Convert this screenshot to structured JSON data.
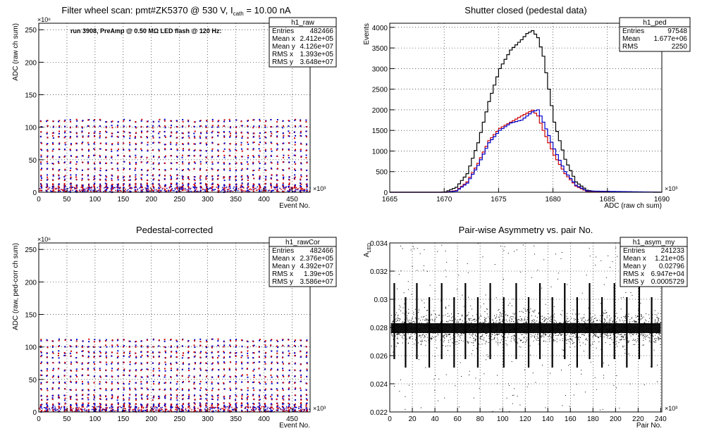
{
  "chart_data": [
    {
      "id": "raw",
      "type": "scatter",
      "title": "Filter wheel scan: pmt#ZK5370 @   530 V, I",
      "title_sub": "cath",
      "title_tail": " = 10.00 nA",
      "annotation": "run 3908, PreAmp @ 0.50 MΩ LED flash @  120 Hz:",
      "xlabel": "Event No.",
      "ylabel": "ADC (raw ch sum)",
      "x_exponent": "×10³",
      "y_exponent": "×10⁶",
      "xlim": [
        0,
        482
      ],
      "ylim": [
        0,
        260
      ],
      "xticks": [
        0,
        50,
        100,
        150,
        200,
        250,
        300,
        350,
        400,
        450
      ],
      "yticks": [
        0,
        50,
        100,
        150,
        200,
        250
      ],
      "grid": true,
      "stats": {
        "name": "h1_raw",
        "rows": [
          {
            "label": "Entries",
            "value": "482466"
          },
          {
            "label": "Mean x",
            "value": "2.412e+05"
          },
          {
            "label": "Mean y",
            "value": "4.126e+07"
          },
          {
            "label": "RMS x",
            "value": "1.393e+05"
          },
          {
            "label": "RMS y",
            "value": "3.648e+07"
          }
        ]
      },
      "band_levels": [
        2,
        8,
        12,
        20,
        25,
        35,
        45,
        55,
        65,
        75,
        85,
        92,
        101,
        110
      ],
      "colors": [
        "#cc0000",
        "#0000cc"
      ]
    },
    {
      "id": "ped",
      "type": "line",
      "title": "Shutter closed (pedestal data)",
      "xlabel": "ADC (raw ch sum)",
      "ylabel": "Events",
      "x_exponent": "×10³",
      "xlim": [
        1665,
        1690
      ],
      "ylim": [
        0,
        4100
      ],
      "xticks": [
        1665,
        1670,
        1675,
        1680,
        1685,
        1690
      ],
      "yticks": [
        0,
        500,
        1000,
        1500,
        2000,
        2500,
        3000,
        3500,
        4000
      ],
      "grid": true,
      "stats": {
        "name": "h1_ped",
        "rows": [
          {
            "label": "Entries",
            "value": "97548"
          },
          {
            "label": "Mean",
            "value": "1.677e+06"
          },
          {
            "label": "RMS",
            "value": "2250"
          }
        ]
      },
      "series": [
        {
          "color": "#000000",
          "x": [
            1665,
            1669.5,
            1670,
            1671,
            1672,
            1673,
            1674,
            1675,
            1676,
            1677,
            1677.5,
            1678,
            1678.5,
            1679,
            1679.5,
            1680,
            1681,
            1682,
            1683,
            1684,
            1690
          ],
          "y": [
            0,
            0,
            10,
            120,
            450,
            1200,
            2200,
            3000,
            3450,
            3700,
            3850,
            3920,
            3750,
            3300,
            2500,
            1700,
            800,
            250,
            50,
            5,
            0
          ]
        },
        {
          "color": "#cc0000",
          "x": [
            1665,
            1670,
            1671,
            1672,
            1673,
            1674,
            1675,
            1676,
            1677,
            1678,
            1678.5,
            1679,
            1680,
            1681,
            1682,
            1683,
            1690
          ],
          "y": [
            0,
            0,
            40,
            250,
            700,
            1250,
            1550,
            1700,
            1850,
            1990,
            1850,
            1500,
            900,
            450,
            150,
            20,
            0
          ]
        },
        {
          "color": "#0000cc",
          "x": [
            1665,
            1670,
            1671,
            1672,
            1673,
            1674,
            1675,
            1676,
            1677,
            1678,
            1678.5,
            1679,
            1680,
            1681,
            1682,
            1683,
            1690
          ],
          "y": [
            0,
            0,
            30,
            220,
            650,
            1200,
            1500,
            1680,
            1750,
            1950,
            2000,
            1700,
            1050,
            500,
            170,
            30,
            0
          ]
        }
      ]
    },
    {
      "id": "rawcor",
      "type": "scatter",
      "title": "Pedestal-corrected",
      "xlabel": "Event No.",
      "ylabel": "ADC (raw, ped-corr ch sum)",
      "x_exponent": "×10³",
      "y_exponent": "×10⁶",
      "xlim": [
        0,
        482
      ],
      "ylim": [
        0,
        260
      ],
      "xticks": [
        0,
        50,
        100,
        150,
        200,
        250,
        300,
        350,
        400,
        450
      ],
      "yticks": [
        0,
        50,
        100,
        150,
        200,
        250
      ],
      "grid": true,
      "stats": {
        "name": "h1_rawCor",
        "rows": [
          {
            "label": "Entries",
            "value": "482466"
          },
          {
            "label": "Mean x",
            "value": "2.376e+05"
          },
          {
            "label": "Mean y",
            "value": "4.392e+07"
          },
          {
            "label": "RMS x",
            "value": "1.39e+05"
          },
          {
            "label": "RMS y",
            "value": "3.586e+07"
          }
        ]
      },
      "band_levels": [
        2,
        8,
        12,
        20,
        25,
        35,
        45,
        55,
        65,
        75,
        85,
        92,
        101,
        110
      ],
      "colors": [
        "#cc0000",
        "#0000cc"
      ]
    },
    {
      "id": "asym",
      "type": "scatter",
      "title": "Pair-wise Asymmetry vs. pair No.",
      "xlabel": "Pair No.",
      "ylabel": "A",
      "ylabel_sub": "LED",
      "x_exponent": "×10³",
      "xlim": [
        0,
        241
      ],
      "ylim": [
        0.022,
        0.034
      ],
      "xticks": [
        0,
        20,
        40,
        60,
        80,
        100,
        120,
        140,
        160,
        180,
        200,
        220,
        240
      ],
      "yticks": [
        0.022,
        0.024,
        0.026,
        0.028,
        0.03,
        0.032,
        0.034
      ],
      "ytick_labels": [
        "0.022",
        "0.024",
        "0.026",
        "0.028",
        "0.03",
        "0.032",
        "0.034"
      ],
      "grid": true,
      "stats": {
        "name": "h1_asym_my",
        "rows": [
          {
            "label": "Entries",
            "value": "241233"
          },
          {
            "label": "Mean x",
            "value": "1.21e+05"
          },
          {
            "label": "Mean y",
            "value": "0.02796"
          },
          {
            "label": "RMS x",
            "value": "6.947e+04"
          },
          {
            "label": "RMS y",
            "value": "0.0005729"
          }
        ]
      },
      "band_center": 0.02795,
      "spike_positions": [
        4,
        14,
        24,
        35,
        46,
        57,
        67,
        78,
        89,
        101,
        112,
        123,
        133,
        144,
        155,
        166,
        177,
        188,
        199,
        210,
        221,
        232
      ],
      "colors": [
        "#000000"
      ]
    }
  ]
}
